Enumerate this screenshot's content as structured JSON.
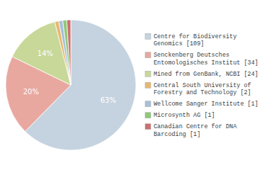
{
  "chart_data": {
    "type": "pie",
    "categories": [
      "Centre for Biodiversity\nGenomics [109]",
      "Senckenberg Deutsches\nEntomologisches Institut [34]",
      "Mined from GenBank, NCBI [24]",
      "Central South University of\nForestry and Technology [2]",
      "Wellcome Sanger Institute [1]",
      "Microsynth AG [1]",
      "Canadian Centre for DNA\nBarcoding [1]"
    ],
    "values": [
      63,
      20,
      14,
      1,
      1,
      1,
      1
    ],
    "value_labels": [
      "63%",
      "20%",
      "14%",
      null,
      null,
      null,
      null
    ],
    "colors": [
      "#c5d3e0",
      "#e8a8a0",
      "#c8d898",
      "#e8b870",
      "#a8c0d8",
      "#90c878",
      "#cc7070"
    ],
    "data_labels": true,
    "legend": "right"
  }
}
